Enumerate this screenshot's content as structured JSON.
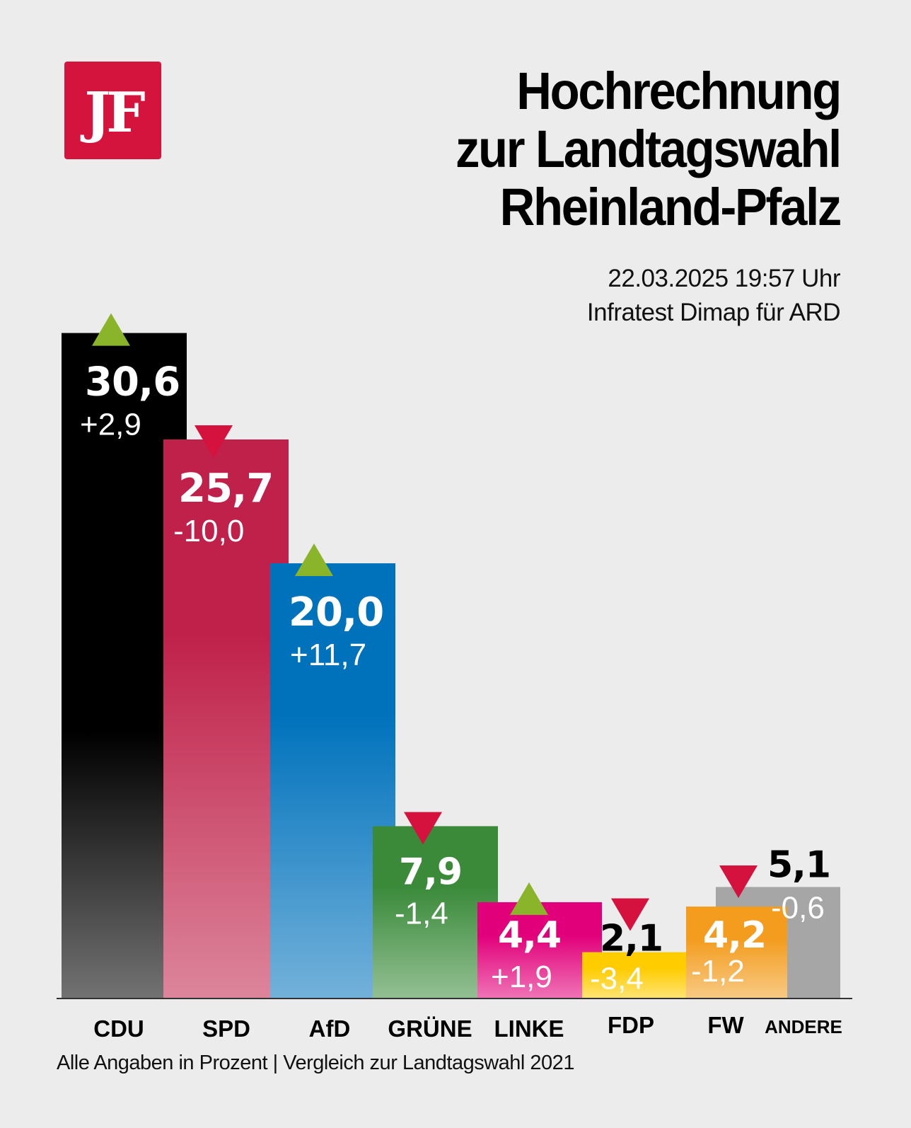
{
  "logo": {
    "text": "JF",
    "color": "#d4143c"
  },
  "header": {
    "title_lines": [
      "Hochrechnung",
      "zur Landtagswahl",
      "Rheinland-Pfalz"
    ],
    "timestamp": "22.03.2025 19:57 Uhr",
    "source": "Infratest Dimap für ARD"
  },
  "footnote": "Alle Angaben in Prozent | Vergleich zur Landtagswahl 2021",
  "chart_data": {
    "type": "bar",
    "title": "Hochrechnung zur Landtagswahl Rheinland-Pfalz",
    "xlabel": "",
    "ylabel": "Prozent",
    "ylim": [
      0,
      32
    ],
    "grid": false,
    "categories": [
      "CDU",
      "SPD",
      "AfD",
      "GRÜNE",
      "LINKE",
      "FDP",
      "FW",
      "ANDERE"
    ],
    "values": [
      30.6,
      25.7,
      20.0,
      7.9,
      4.4,
      2.1,
      4.2,
      5.1
    ],
    "value_labels": [
      "30,6",
      "25,7",
      "20,0",
      "7,9",
      "4,4",
      "2,1",
      "4,2",
      "5,1"
    ],
    "changes": [
      2.9,
      -10.0,
      11.7,
      -1.4,
      1.9,
      -3.4,
      -1.2,
      -0.6
    ],
    "change_labels": [
      "+2,9",
      "-10,0",
      "+11,7",
      "-1,4",
      "+1,9",
      "-3,4",
      "-1,2",
      "-0,6"
    ],
    "trend": [
      "up",
      "down",
      "up",
      "down",
      "up",
      "down",
      "down",
      "none"
    ],
    "colors": [
      "#000000",
      "#c0214a",
      "#0072bc",
      "#3a8a3a",
      "#e2007a",
      "#ffcc00",
      "#f39c1e",
      "#a6a6a6"
    ],
    "trend_colors": {
      "up": "#8ab52a",
      "down": "#d5123d"
    },
    "comparison": "Landtagswahl 2021"
  }
}
